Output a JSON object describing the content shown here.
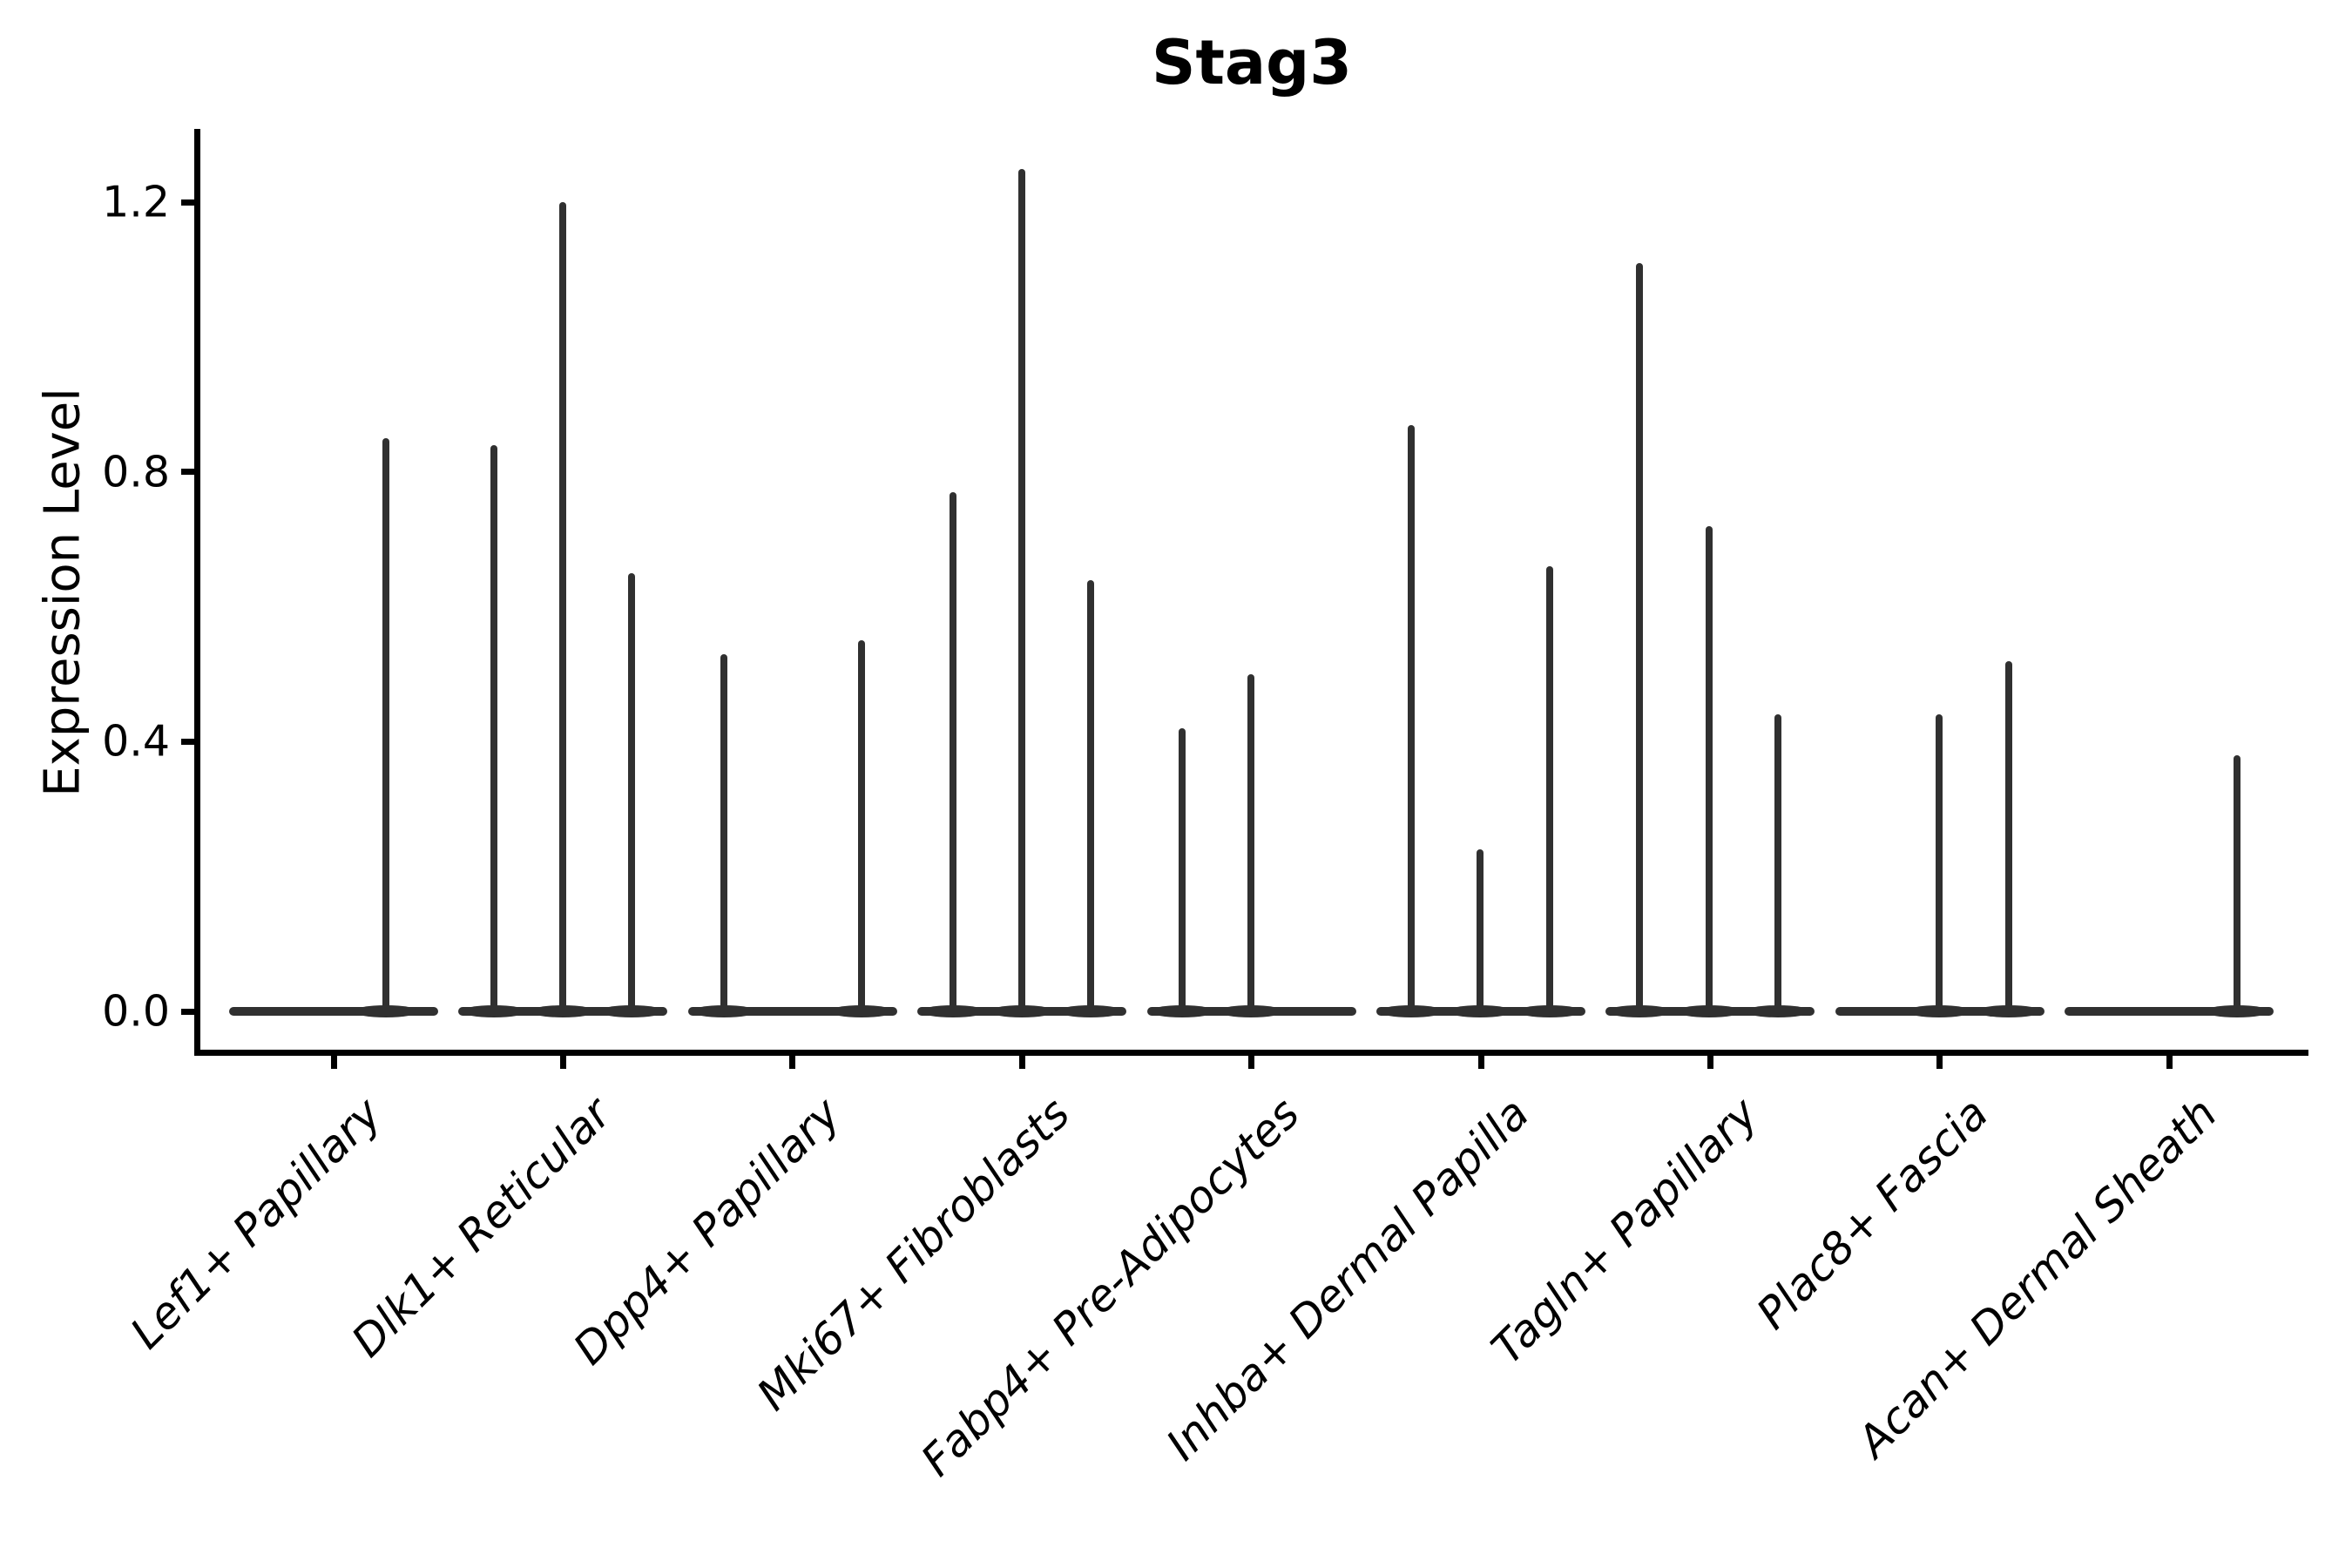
{
  "figure": {
    "title": "Stag3",
    "y_axis": {
      "label": "Expression Level"
    },
    "colors": {
      "ink": "#000000",
      "violin": "#303030",
      "background": "#ffffff"
    }
  },
  "chart_data": {
    "type": "violin",
    "title": "Stag3",
    "xlabel": "",
    "ylabel": "Expression Level",
    "ylim": [
      0,
      1.3
    ],
    "grid": false,
    "legend": "none",
    "yticks": [
      1.2,
      0.8,
      0.4,
      0.0
    ],
    "ytick_labels": [
      "1.2",
      "0.8",
      "0.4",
      "0.0"
    ],
    "categories": [
      "Lef1+ Papillary",
      "Dlk1+ Reticular",
      "Dpp4+ Papillary",
      "Mki67+ Fibroblasts",
      "Fabp4+ Pre-Adipocytes",
      "Inhba+ Dermal Papilla",
      "Tagln+ Papillary",
      "Plac8+ Fascia",
      "Acan+ Dermal Sheath"
    ],
    "violins": [
      {
        "category": "Lef1+ Papillary",
        "zero_body": true,
        "spikes": [
          {
            "value": 0.85,
            "x_offset": 60
          }
        ]
      },
      {
        "category": "Dlk1+ Reticular",
        "zero_body": true,
        "spikes": [
          {
            "value": 0.84,
            "x_offset": -79
          },
          {
            "value": 1.2,
            "x_offset": 0
          },
          {
            "value": 0.65,
            "x_offset": 79
          }
        ]
      },
      {
        "category": "Dpp4+ Papillary",
        "zero_body": true,
        "spikes": [
          {
            "value": 0.53,
            "x_offset": -79
          },
          {
            "value": 0.55,
            "x_offset": 79
          }
        ]
      },
      {
        "category": "Mki67+ Fibroblasts",
        "zero_body": true,
        "spikes": [
          {
            "value": 0.77,
            "x_offset": -79
          },
          {
            "value": 1.25,
            "x_offset": 0
          },
          {
            "value": 0.64,
            "x_offset": 79
          }
        ]
      },
      {
        "category": "Fabp4+ Pre-Adipocytes",
        "zero_body": true,
        "spikes": [
          {
            "value": 0.42,
            "x_offset": -80
          },
          {
            "value": 0.5,
            "x_offset": -1
          }
        ]
      },
      {
        "category": "Inhba+ Dermal Papilla",
        "zero_body": true,
        "spikes": [
          {
            "value": 0.87,
            "x_offset": -80
          },
          {
            "value": 0.24,
            "x_offset": -1
          },
          {
            "value": 0.66,
            "x_offset": 79
          }
        ]
      },
      {
        "category": "Tagln+ Papillary",
        "zero_body": true,
        "spikes": [
          {
            "value": 1.11,
            "x_offset": -81
          },
          {
            "value": 0.72,
            "x_offset": -1
          },
          {
            "value": 0.44,
            "x_offset": 78
          }
        ]
      },
      {
        "category": "Plac8+ Fascia",
        "zero_body": true,
        "spikes": [
          {
            "value": 0.44,
            "x_offset": -1
          },
          {
            "value": 0.52,
            "x_offset": 79
          }
        ]
      },
      {
        "category": "Acan+ Dermal Sheath",
        "zero_body": true,
        "spikes": [
          {
            "value": 0.38,
            "x_offset": 78
          }
        ]
      }
    ]
  }
}
